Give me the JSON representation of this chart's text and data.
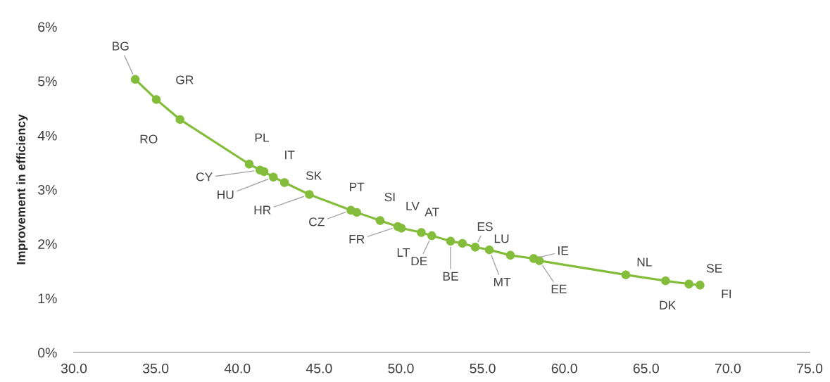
{
  "chart_data": {
    "type": "line",
    "ylabel": "Improvement in efficiency",
    "x": [
      33.75,
      35.04,
      36.49,
      40.72,
      41.38,
      41.63,
      42.2,
      42.88,
      44.4,
      46.94,
      47.3,
      48.73,
      49.81,
      50.03,
      51.25,
      51.89,
      53.04,
      53.76,
      54.55,
      55.41,
      56.7,
      58.12,
      58.47,
      63.76,
      66.19,
      67.62,
      68.3
    ],
    "series": [
      {
        "color": "#84bd3c",
        "values": [
          5.03,
          4.66,
          4.29,
          3.47,
          3.36,
          3.33,
          3.23,
          3.13,
          2.91,
          2.62,
          2.58,
          2.43,
          2.32,
          2.29,
          2.21,
          2.15,
          2.05,
          2.01,
          1.94,
          1.89,
          1.79,
          1.73,
          1.69,
          1.43,
          1.32,
          1.26,
          1.24
        ]
      }
    ],
    "marker": "circle",
    "line_style": "solid",
    "xlim": [
      30,
      75
    ],
    "xticks": [
      {
        "value": 30,
        "label": "30.0"
      },
      {
        "value": 35,
        "label": "35.0"
      },
      {
        "value": 40,
        "label": "40.0"
      },
      {
        "value": 45,
        "label": "45.0"
      },
      {
        "value": 50,
        "label": "50.0"
      },
      {
        "value": 55,
        "label": "55.0"
      },
      {
        "value": 60,
        "label": "60.0"
      },
      {
        "value": 65,
        "label": "65.0"
      },
      {
        "value": 70,
        "label": "70.0"
      },
      {
        "value": 75,
        "label": "75.0"
      }
    ],
    "ylim": [
      0,
      6
    ],
    "yticks": [
      {
        "value": 0,
        "label": "0%"
      },
      {
        "value": 1,
        "label": "1%"
      },
      {
        "value": 2,
        "label": "2%"
      },
      {
        "value": 3,
        "label": "3%"
      },
      {
        "value": 4,
        "label": "4%"
      },
      {
        "value": 5,
        "label": "5%"
      },
      {
        "value": 6,
        "label": "6%"
      }
    ],
    "annotations": [
      {
        "text": "BG",
        "x": 33.75,
        "y": 5.03
      },
      {
        "text": "GR",
        "x": 35.04,
        "y": 4.66
      },
      {
        "text": "RO",
        "x": 36.49,
        "y": 4.29
      },
      {
        "text": "PL",
        "x": 40.72,
        "y": 3.47
      },
      {
        "text": "CY",
        "x": 41.38,
        "y": 3.36
      },
      {
        "text": "IT",
        "x": 41.63,
        "y": 3.33
      },
      {
        "text": "HU",
        "x": 42.2,
        "y": 3.23
      },
      {
        "text": "SK",
        "x": 42.88,
        "y": 3.13
      },
      {
        "text": "HR",
        "x": 44.4,
        "y": 2.91
      },
      {
        "text": "CZ",
        "x": 46.94,
        "y": 2.62
      },
      {
        "text": "PT",
        "x": 47.3,
        "y": 2.58
      },
      {
        "text": "SI",
        "x": 48.73,
        "y": 2.43
      },
      {
        "text": "FR",
        "x": 49.81,
        "y": 2.32
      },
      {
        "text": "LT",
        "x": 50.03,
        "y": 2.29
      },
      {
        "text": "LV",
        "x": 51.25,
        "y": 2.21
      },
      {
        "text": "DE",
        "x": 51.89,
        "y": 2.15
      },
      {
        "text": "BE",
        "x": 53.04,
        "y": 2.05
      },
      {
        "text": "AT",
        "x": 53.76,
        "y": 2.01
      },
      {
        "text": "ES",
        "x": 54.55,
        "y": 1.94
      },
      {
        "text": "MT",
        "x": 55.41,
        "y": 1.89
      },
      {
        "text": "LU",
        "x": 56.7,
        "y": 1.79
      },
      {
        "text": "IE",
        "x": 58.12,
        "y": 1.73
      },
      {
        "text": "EE",
        "x": 58.47,
        "y": 1.69
      },
      {
        "text": "NL",
        "x": 63.76,
        "y": 1.43
      },
      {
        "text": "DK",
        "x": 66.19,
        "y": 1.32
      },
      {
        "text": "SE",
        "x": 67.62,
        "y": 1.26
      },
      {
        "text": "FI",
        "x": 68.3,
        "y": 1.24
      }
    ]
  }
}
